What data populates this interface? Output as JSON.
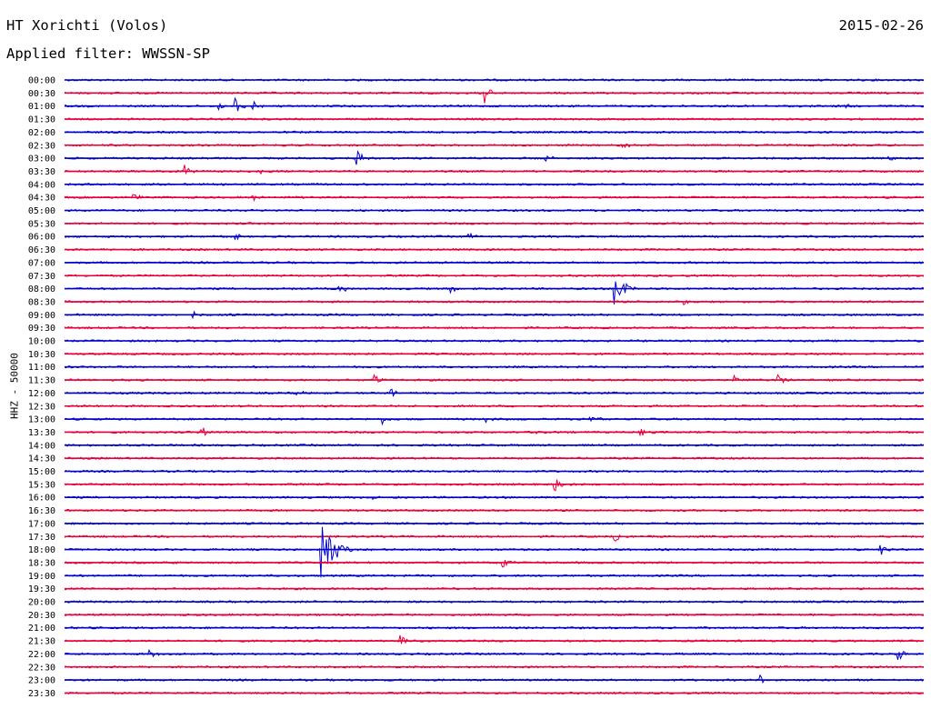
{
  "header": {
    "station": "HT Xorichti (Volos)",
    "date": "2015-02-26",
    "filter": "Applied filter: WWSSN-SP"
  },
  "chart_data": {
    "type": "line",
    "title": "HT Xorichti (Volos)",
    "subtitle": "Applied filter: WWSSN-SP",
    "ylabel": "HHZ - 50000",
    "xlabel": "",
    "grid": false,
    "colors": [
      "#0000cc",
      "#e8003a"
    ],
    "categories": [
      "00:00",
      "00:30",
      "01:00",
      "01:30",
      "02:00",
      "02:30",
      "03:00",
      "03:30",
      "04:00",
      "04:30",
      "05:00",
      "05:30",
      "06:00",
      "06:30",
      "07:00",
      "07:30",
      "08:00",
      "08:30",
      "09:00",
      "09:30",
      "10:00",
      "10:30",
      "11:00",
      "11:30",
      "12:00",
      "12:30",
      "13:00",
      "13:30",
      "14:00",
      "14:30",
      "15:00",
      "15:30",
      "16:00",
      "16:30",
      "17:00",
      "17:30",
      "18:00",
      "18:30",
      "19:00",
      "19:30",
      "20:00",
      "20:30",
      "21:00",
      "21:30",
      "22:00",
      "22:30",
      "23:00",
      "23:30"
    ],
    "events": [
      {
        "row": 1,
        "pos": 0.49,
        "amp": 12
      },
      {
        "row": 2,
        "pos": 0.2,
        "amp": 10
      },
      {
        "row": 2,
        "pos": 0.22,
        "amp": 6
      },
      {
        "row": 2,
        "pos": 0.18,
        "amp": 5
      },
      {
        "row": 2,
        "pos": 0.91,
        "amp": 5
      },
      {
        "row": 4,
        "pos": 0.31,
        "amp": 4
      },
      {
        "row": 5,
        "pos": 0.65,
        "amp": 4
      },
      {
        "row": 6,
        "pos": 0.34,
        "amp": 14
      },
      {
        "row": 6,
        "pos": 0.56,
        "amp": 5
      },
      {
        "row": 6,
        "pos": 0.96,
        "amp": 4
      },
      {
        "row": 7,
        "pos": 0.14,
        "amp": 8
      },
      {
        "row": 7,
        "pos": 0.23,
        "amp": 5
      },
      {
        "row": 9,
        "pos": 0.08,
        "amp": 5
      },
      {
        "row": 9,
        "pos": 0.22,
        "amp": 5
      },
      {
        "row": 9,
        "pos": 0.27,
        "amp": 4
      },
      {
        "row": 12,
        "pos": 0.2,
        "amp": 5
      },
      {
        "row": 12,
        "pos": 0.47,
        "amp": 5
      },
      {
        "row": 16,
        "pos": 0.64,
        "amp": 24
      },
      {
        "row": 16,
        "pos": 0.32,
        "amp": 6
      },
      {
        "row": 16,
        "pos": 0.45,
        "amp": 5
      },
      {
        "row": 17,
        "pos": 0.72,
        "amp": 5
      },
      {
        "row": 18,
        "pos": 0.15,
        "amp": 4
      },
      {
        "row": 23,
        "pos": 0.36,
        "amp": 8
      },
      {
        "row": 23,
        "pos": 0.83,
        "amp": 10
      },
      {
        "row": 23,
        "pos": 0.78,
        "amp": 4
      },
      {
        "row": 24,
        "pos": 0.27,
        "amp": 5
      },
      {
        "row": 24,
        "pos": 0.38,
        "amp": 5
      },
      {
        "row": 26,
        "pos": 0.37,
        "amp": 5
      },
      {
        "row": 26,
        "pos": 0.49,
        "amp": 5
      },
      {
        "row": 26,
        "pos": 0.61,
        "amp": 6
      },
      {
        "row": 27,
        "pos": 0.16,
        "amp": 8
      },
      {
        "row": 27,
        "pos": 0.55,
        "amp": 6
      },
      {
        "row": 27,
        "pos": 0.67,
        "amp": 5
      },
      {
        "row": 31,
        "pos": 0.57,
        "amp": 9
      },
      {
        "row": 32,
        "pos": 0.36,
        "amp": 4
      },
      {
        "row": 35,
        "pos": 0.64,
        "amp": 6
      },
      {
        "row": 36,
        "pos": 0.3,
        "amp": 56
      },
      {
        "row": 36,
        "pos": 0.95,
        "amp": 7
      },
      {
        "row": 37,
        "pos": 0.51,
        "amp": 8
      },
      {
        "row": 37,
        "pos": 0.12,
        "amp": 4
      },
      {
        "row": 43,
        "pos": 0.39,
        "amp": 8
      },
      {
        "row": 44,
        "pos": 0.1,
        "amp": 5
      },
      {
        "row": 44,
        "pos": 0.97,
        "amp": 9
      },
      {
        "row": 46,
        "pos": 0.81,
        "amp": 6
      }
    ]
  }
}
